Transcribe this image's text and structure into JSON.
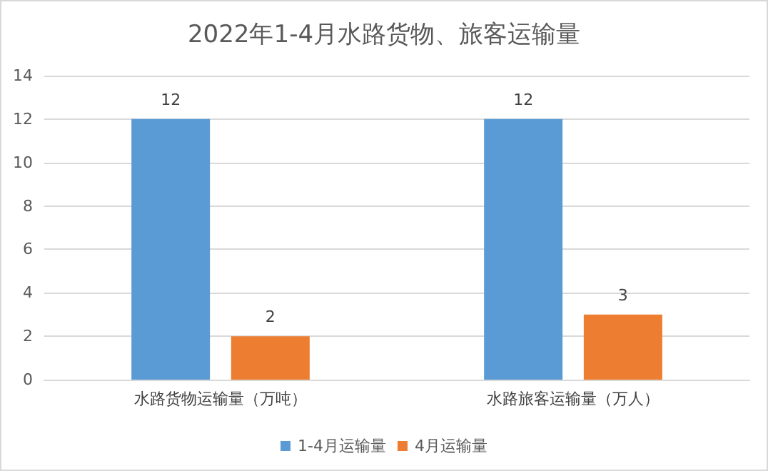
{
  "chart_data": {
    "type": "bar",
    "title": "2022年1-4月水路货物、旅客运输量",
    "categories": [
      "水路货物运输量（万吨）",
      "水路旅客运输量（万人）"
    ],
    "series": [
      {
        "name": "1-4月运输量",
        "color": "#5b9bd5",
        "values": [
          12,
          12
        ]
      },
      {
        "name": "4月运输量",
        "color": "#ed7d31",
        "values": [
          2,
          3
        ]
      }
    ],
    "ylim": [
      0,
      14
    ],
    "yticks": [
      0,
      2,
      4,
      6,
      8,
      10,
      12,
      14
    ],
    "grid": "y",
    "legend": "bottom",
    "data_labels": true
  }
}
